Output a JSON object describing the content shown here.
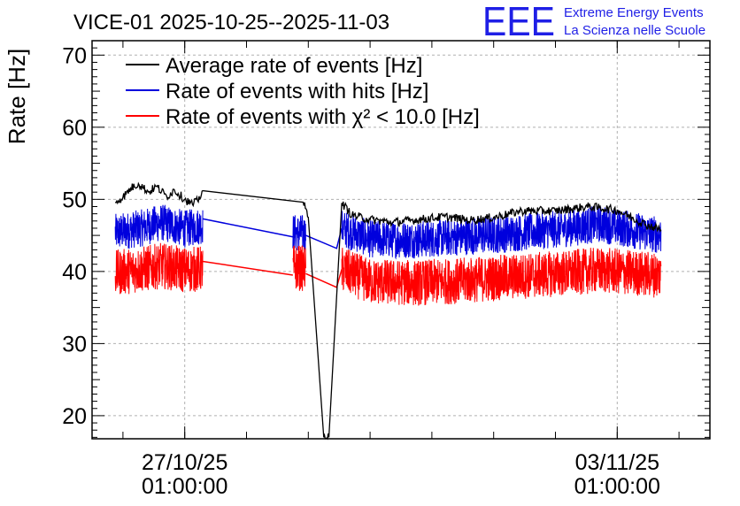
{
  "chart_data": {
    "type": "line",
    "title": "VICE-01 2025-10-25--2025-11-03",
    "ylabel": "Rate [Hz]",
    "xlabel": "",
    "ylim": [
      16.8,
      72.0
    ],
    "grid": true,
    "legend_position": "top-left",
    "logo": {
      "mark": "EEE",
      "line1": "Extreme Energy Events",
      "line2": "La Scienza nelle Scuole",
      "color": "#1f1fe6"
    },
    "x_ticks": [
      {
        "date": "2025-10-27 01:00:00",
        "line1": "27/10/25",
        "line2": "01:00:00"
      },
      {
        "date": "2025-11-03 01:00:00",
        "line1": "03/11/25",
        "line2": "01:00:00"
      }
    ],
    "x_range": [
      "2025-10-25 13:00:00",
      "2025-11-04 13:00:00"
    ],
    "y_ticks": [
      20,
      30,
      40,
      50,
      60,
      70
    ],
    "series": [
      {
        "name": "Average rate of events [Hz]",
        "color": "#000000",
        "style": "smooth",
        "noise": 0.6,
        "points": [
          [
            "2025-10-25 22:00:00",
            49.6
          ],
          [
            "2025-10-26 01:00:00",
            50.3
          ],
          [
            "2025-10-26 04:00:00",
            51.5
          ],
          [
            "2025-10-26 07:00:00",
            52.2
          ],
          [
            "2025-10-26 11:00:00",
            51.0
          ],
          [
            "2025-10-26 14:00:00",
            51.8
          ],
          [
            "2025-10-26 18:00:00",
            50.4
          ],
          [
            "2025-10-26 21:00:00",
            51.3
          ],
          [
            "2025-10-27 01:00:00",
            50.0
          ],
          [
            "2025-10-27 04:00:00",
            49.3
          ],
          [
            "2025-10-27 06:00:00",
            49.8
          ],
          [
            "2025-10-27 08:00:00",
            51.2
          ],
          [
            "2025-10-28 23:00:00",
            49.6
          ],
          [
            "2025-10-29 01:00:00",
            47.5
          ],
          [
            "2025-10-29 07:00:00",
            17.0
          ],
          [
            "2025-10-29 09:00:00",
            17.0
          ],
          [
            "2025-10-29 14:00:00",
            49.5
          ],
          [
            "2025-10-29 18:00:00",
            47.8
          ],
          [
            "2025-10-30 01:00:00",
            47.2
          ],
          [
            "2025-10-30 10:00:00",
            46.8
          ],
          [
            "2025-10-30 20:00:00",
            47.2
          ],
          [
            "2025-10-31 06:00:00",
            47.6
          ],
          [
            "2025-10-31 16:00:00",
            47.1
          ],
          [
            "2025-11-01 01:00:00",
            47.5
          ],
          [
            "2025-11-01 12:00:00",
            48.4
          ],
          [
            "2025-11-02 01:00:00",
            48.4
          ],
          [
            "2025-11-02 14:00:00",
            49.0
          ],
          [
            "2025-11-03 01:00:00",
            48.5
          ],
          [
            "2025-11-03 12:00:00",
            46.5
          ],
          [
            "2025-11-03 18:00:00",
            45.8
          ]
        ]
      },
      {
        "name": "Rate of events with hits [Hz]",
        "color": "#0000dd",
        "style": "band",
        "band_width": 2.6,
        "segments": [
          [
            [
              "2025-10-25 22:00:00",
              45.4
            ],
            [
              "2025-10-26 08:00:00",
              46.0
            ],
            [
              "2025-10-26 16:00:00",
              46.8
            ],
            [
              "2025-10-27 01:00:00",
              45.9
            ],
            [
              "2025-10-27 08:00:00",
              46.4
            ]
          ],
          [
            [
              "2025-10-28 19:00:00",
              45.4
            ],
            [
              "2025-10-29 00:00:00",
              45.3
            ]
          ],
          [
            [
              "2025-10-29 14:00:00",
              46.0
            ],
            [
              "2025-10-30 01:00:00",
              44.5
            ],
            [
              "2025-10-30 18:00:00",
              44.4
            ],
            [
              "2025-10-31 12:00:00",
              44.8
            ],
            [
              "2025-11-01 06:00:00",
              45.2
            ],
            [
              "2025-11-02 06:00:00",
              46.0
            ],
            [
              "2025-11-02 18:00:00",
              46.6
            ],
            [
              "2025-11-03 18:00:00",
              45.0
            ]
          ]
        ],
        "connectors": [
          [
            [
              "2025-10-27 08:00:00",
              47.3
            ],
            [
              "2025-10-28 19:00:00",
              44.8
            ]
          ],
          [
            [
              "2025-10-29 00:00:00",
              45.0
            ],
            [
              "2025-10-29 12:00:00",
              43.2
            ],
            [
              "2025-10-29 14:00:00",
              46.0
            ]
          ]
        ]
      },
      {
        "name": "Rate of events with χ² < 10.0 [Hz]",
        "color": "#ff0000",
        "style": "band",
        "band_width": 3.2,
        "segments": [
          [
            [
              "2025-10-25 22:00:00",
              39.8
            ],
            [
              "2025-10-26 08:00:00",
              40.3
            ],
            [
              "2025-10-26 16:00:00",
              40.8
            ],
            [
              "2025-10-27 01:00:00",
              40.2
            ],
            [
              "2025-10-27 08:00:00",
              40.4
            ]
          ],
          [
            [
              "2025-10-28 19:00:00",
              40.6
            ],
            [
              "2025-10-29 00:00:00",
              40.4
            ]
          ],
          [
            [
              "2025-10-29 14:00:00",
              40.3
            ],
            [
              "2025-10-30 01:00:00",
              38.6
            ],
            [
              "2025-10-30 18:00:00",
              38.4
            ],
            [
              "2025-10-31 12:00:00",
              38.7
            ],
            [
              "2025-11-01 06:00:00",
              39.2
            ],
            [
              "2025-11-02 06:00:00",
              39.8
            ],
            [
              "2025-11-02 18:00:00",
              40.2
            ],
            [
              "2025-11-03 18:00:00",
              39.5
            ]
          ]
        ],
        "connectors": [
          [
            [
              "2025-10-27 08:00:00",
              41.4
            ],
            [
              "2025-10-28 19:00:00",
              39.5
            ]
          ],
          [
            [
              "2025-10-29 00:00:00",
              39.7
            ],
            [
              "2025-10-29 12:00:00",
              37.8
            ],
            [
              "2025-10-29 14:00:00",
              40.3
            ]
          ]
        ]
      }
    ]
  }
}
